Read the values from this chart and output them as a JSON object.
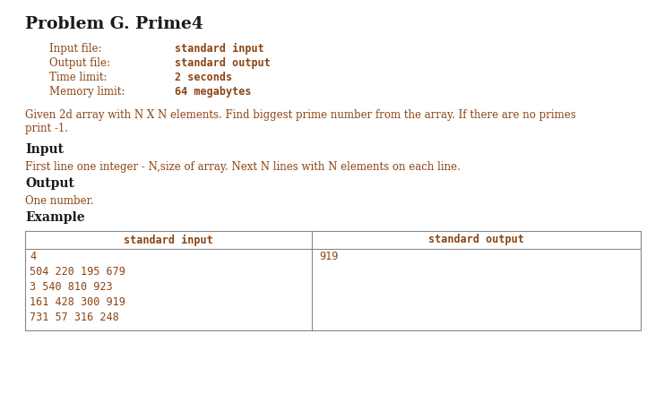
{
  "title": "Problem G. Prime4",
  "title_color": "#1a1a1a",
  "title_fontsize": 13.5,
  "meta_labels": [
    "Input file:",
    "Output file:",
    "Time limit:",
    "Memory limit:"
  ],
  "meta_values": [
    "standard input",
    "standard output",
    "2 seconds",
    "64 megabytes"
  ],
  "meta_label_color": "#8B4513",
  "meta_value_color": "#8B4513",
  "meta_fontsize": 8.5,
  "description": "Given 2d array with N X N elements. Find biggest prime number from the array. If there are no primes\nprint -1.",
  "desc_color": "#8B4513",
  "desc_fontsize": 8.5,
  "section_input": "Input",
  "section_input_text": "First line one integer - N,size of array. Next N lines with N elements on each line.",
  "section_output": "Output",
  "section_output_text": "One number.",
  "section_example": "Example",
  "section_color": "#1a1a1a",
  "section_text_color": "#8B4513",
  "section_fontsize": 10,
  "table_header_left": "standard input",
  "table_header_right": "standard output",
  "table_header_color": "#8B4513",
  "table_input_lines": [
    "4",
    "504 220 195 679",
    "3 540 810 923",
    "161 428 300 919",
    "731 57 316 248"
  ],
  "table_output_lines": [
    "919"
  ],
  "table_text_color": "#8B4513",
  "table_border_color": "#888888",
  "bg_color": "#ffffff",
  "fig_width": 7.41,
  "fig_height": 4.68,
  "dpi": 100
}
